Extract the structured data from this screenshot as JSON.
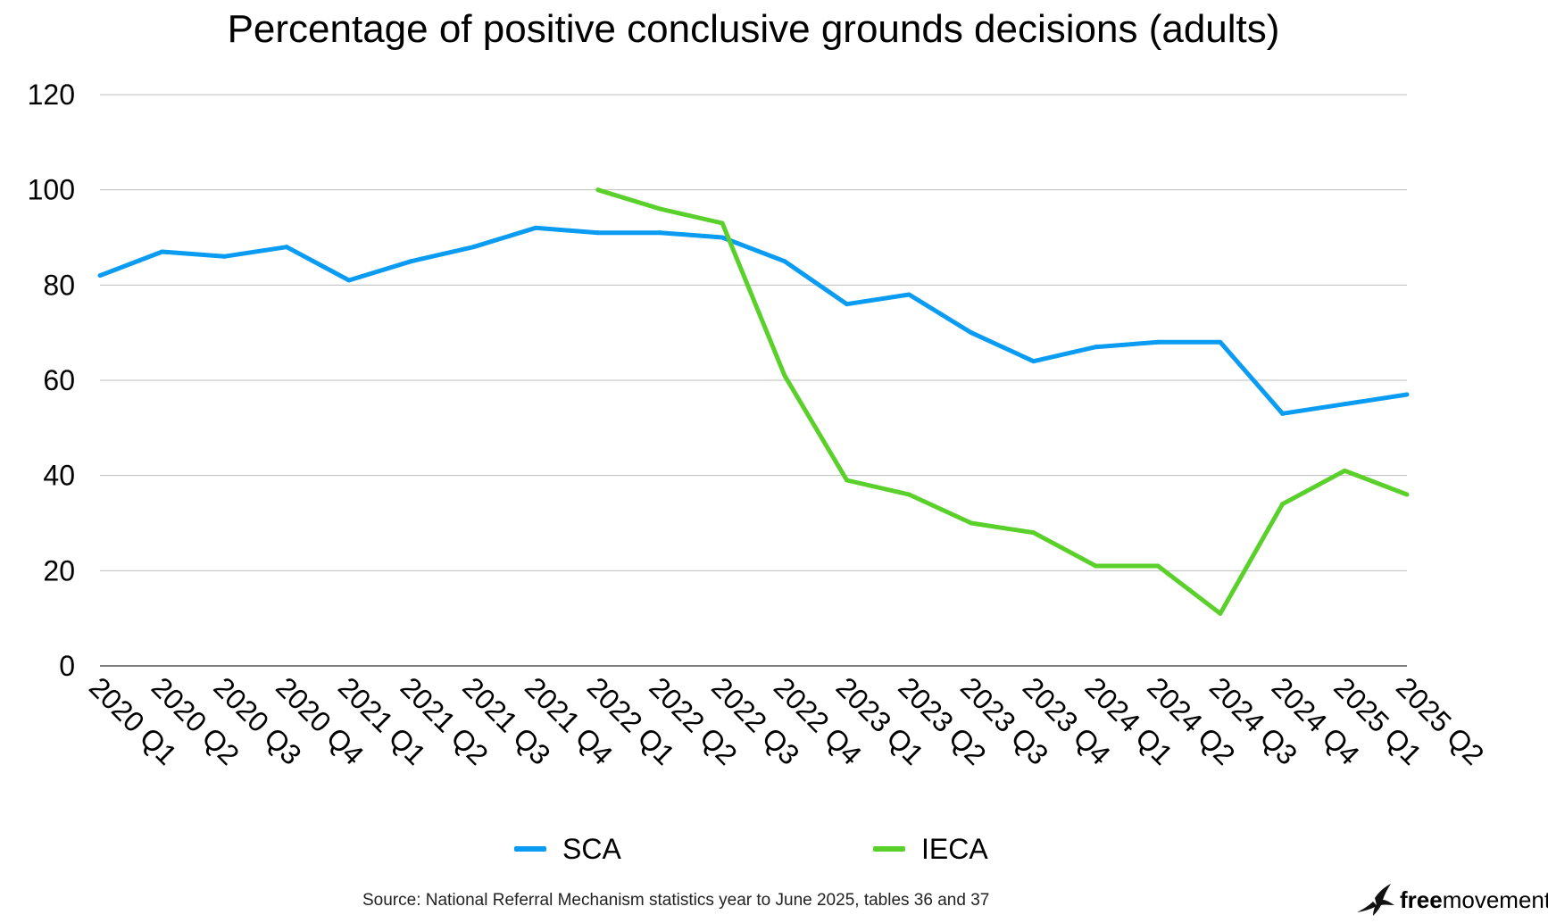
{
  "chart_data": {
    "type": "line",
    "title": "Percentage of positive conclusive grounds decisions (adults)",
    "xlabel": "",
    "ylabel": "",
    "ylim": [
      0,
      120
    ],
    "yticks": [
      "0",
      "20",
      "40",
      "60",
      "80",
      "100",
      "120"
    ],
    "grid": true,
    "legend_position": "bottom",
    "categories": [
      "2020 Q1",
      "2020 Q2",
      "2020 Q3",
      "2020 Q4",
      "2021 Q1",
      "2021 Q2",
      "2021 Q3",
      "2021 Q4",
      "2022 Q1",
      "2022 Q2",
      "2022 Q3",
      "2022 Q4",
      "2023 Q1",
      "2023 Q2",
      "2023 Q3",
      "2023 Q4",
      "2024 Q1",
      "2024 Q2",
      "2024 Q3",
      "2024 Q4",
      "2025 Q1",
      "2025 Q2"
    ],
    "series": [
      {
        "name": "SCA",
        "color": "#0a9cf2",
        "values": [
          82,
          87,
          86,
          88,
          81,
          85,
          88,
          92,
          91,
          91,
          90,
          85,
          76,
          78,
          70,
          64,
          67,
          68,
          68,
          53,
          55,
          57
        ]
      },
      {
        "name": "IECA",
        "color": "#5ad02a",
        "values": [
          null,
          null,
          null,
          null,
          null,
          null,
          null,
          null,
          100,
          96,
          93,
          61,
          39,
          36,
          30,
          28,
          21,
          21,
          11,
          34,
          41,
          36
        ]
      }
    ]
  },
  "source": "Source: National Referral Mechanism statistics year to June 2025, tables 36 and 37",
  "brand": {
    "bold": "free",
    "regular": "movement",
    "icon": "bird-icon"
  }
}
